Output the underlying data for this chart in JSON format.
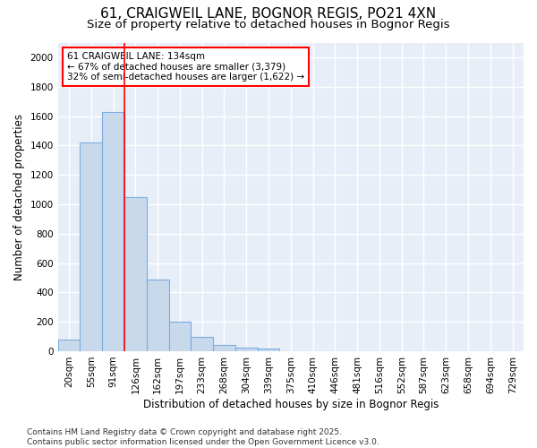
{
  "title1": "61, CRAIGWEIL LANE, BOGNOR REGIS, PO21 4XN",
  "title2": "Size of property relative to detached houses in Bognor Regis",
  "xlabel": "Distribution of detached houses by size in Bognor Regis",
  "ylabel": "Number of detached properties",
  "categories": [
    "20sqm",
    "55sqm",
    "91sqm",
    "126sqm",
    "162sqm",
    "197sqm",
    "233sqm",
    "268sqm",
    "304sqm",
    "339sqm",
    "375sqm",
    "410sqm",
    "446sqm",
    "481sqm",
    "516sqm",
    "552sqm",
    "587sqm",
    "623sqm",
    "658sqm",
    "694sqm",
    "729sqm"
  ],
  "values": [
    82,
    1420,
    1625,
    1050,
    490,
    200,
    100,
    40,
    25,
    15,
    0,
    0,
    0,
    0,
    0,
    0,
    0,
    0,
    0,
    0,
    0
  ],
  "bar_facecolor": "#c9d9ec",
  "bar_edgecolor": "#7aace0",
  "red_line_x": 3.0,
  "annotation_text": "61 CRAIGWEIL LANE: 134sqm\n← 67% of detached houses are smaller (3,379)\n32% of semi-detached houses are larger (1,622) →",
  "annotation_box_edgecolor": "red",
  "ylim": [
    0,
    2100
  ],
  "yticks": [
    0,
    200,
    400,
    600,
    800,
    1000,
    1200,
    1400,
    1600,
    1800,
    2000
  ],
  "footer1": "Contains HM Land Registry data © Crown copyright and database right 2025.",
  "footer2": "Contains public sector information licensed under the Open Government Licence v3.0.",
  "bg_color": "#ffffff",
  "plot_bg_color": "#e8eef8",
  "grid_color": "#ffffff",
  "title1_fontsize": 11,
  "title2_fontsize": 9.5,
  "axis_label_fontsize": 8.5,
  "tick_fontsize": 7.5,
  "annotation_fontsize": 7.5,
  "footer_fontsize": 6.5
}
